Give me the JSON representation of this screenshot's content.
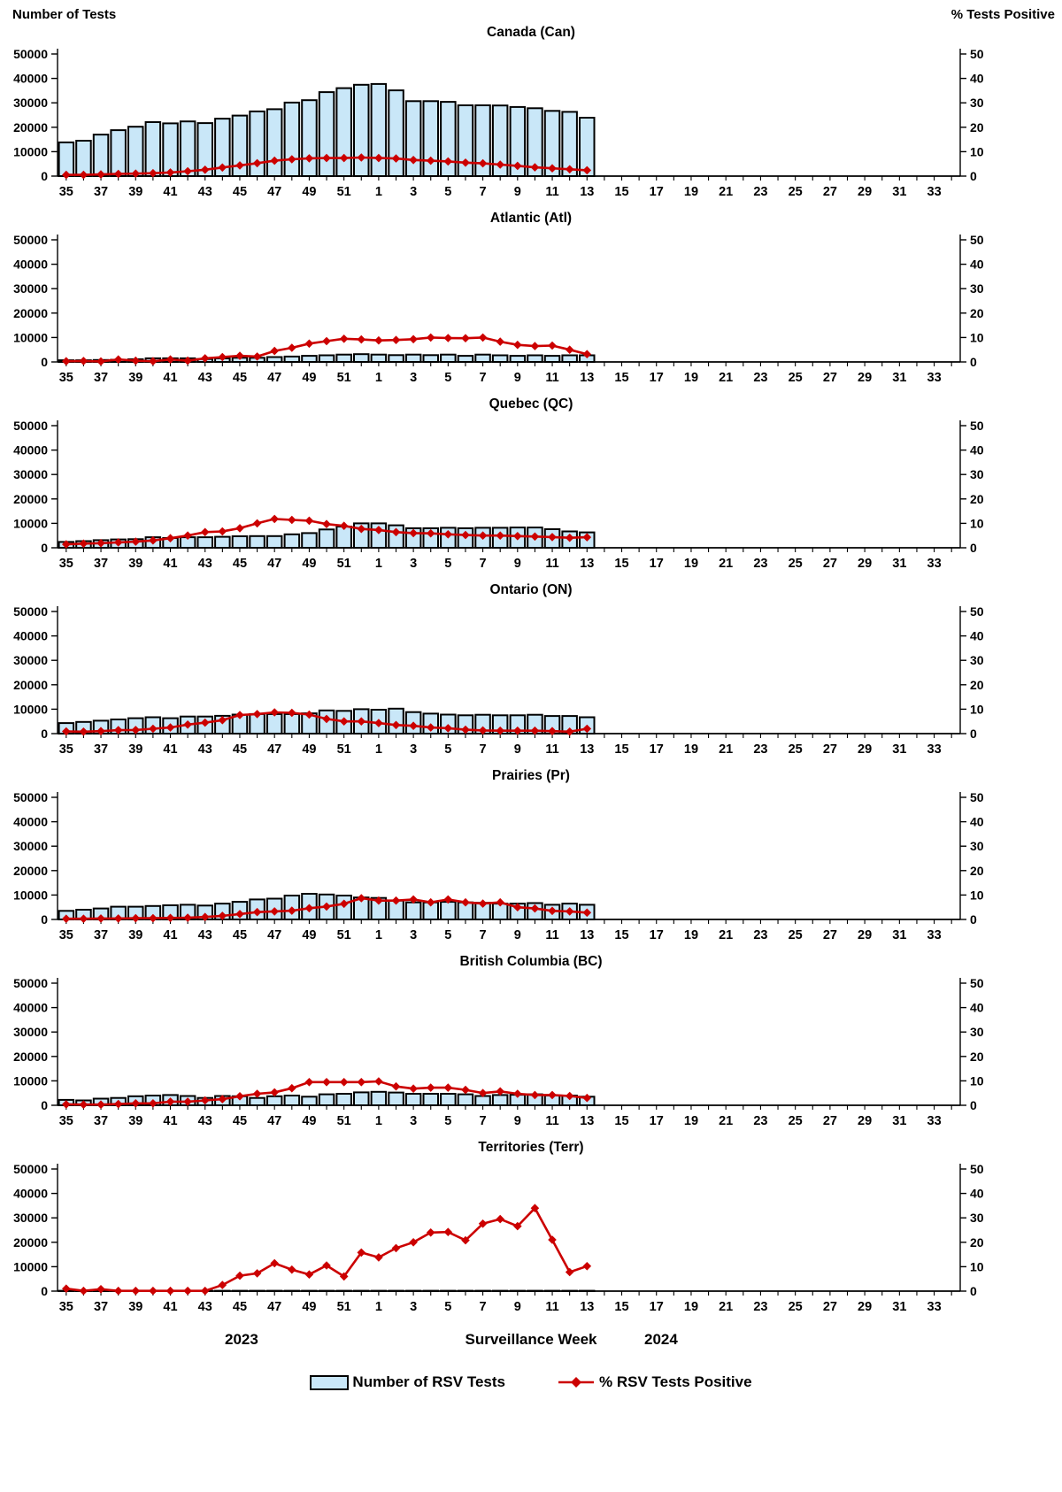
{
  "page": {
    "left_axis_title": "Number of Tests",
    "right_axis_title": "% Tests Positive",
    "x_axis": {
      "year_left": "2023",
      "title": "Surveillance Week",
      "year_right": "2024"
    },
    "legend": {
      "bars_label": "Number of RSV Tests",
      "line_label": "% RSV Tests Positive"
    },
    "colors": {
      "bar_fill": "#c9e7f8",
      "bar_stroke": "#000000",
      "line": "#cc0000",
      "axis": "#000000"
    }
  },
  "axes": {
    "left_ticks": [
      0,
      10000,
      20000,
      30000,
      40000,
      50000
    ],
    "right_ticks": [
      0,
      10,
      20,
      30,
      40,
      50
    ],
    "left_max": 50000,
    "right_max": 50,
    "x_weeks": [
      35,
      36,
      37,
      38,
      39,
      40,
      41,
      42,
      43,
      44,
      45,
      46,
      47,
      48,
      49,
      50,
      51,
      52,
      1,
      2,
      3,
      4,
      5,
      6,
      7,
      8,
      9,
      10,
      11,
      12,
      13,
      14,
      15,
      16,
      17,
      18,
      19,
      20,
      21,
      22,
      23,
      24,
      25,
      26,
      27,
      28,
      29,
      30,
      31,
      32,
      33,
      34
    ],
    "labeled_weeks": [
      35,
      37,
      39,
      41,
      43,
      45,
      47,
      49,
      51,
      1,
      3,
      5,
      7,
      9,
      11,
      13,
      15,
      17,
      19,
      21,
      23,
      25,
      27,
      29,
      31,
      33
    ]
  },
  "chart_data": [
    {
      "type": "bar",
      "title": "Canada (Can)",
      "data_weeks": [
        35,
        36,
        37,
        38,
        39,
        40,
        41,
        42,
        43,
        44,
        45,
        46,
        47,
        48,
        49,
        50,
        51,
        52,
        1,
        2,
        3,
        4,
        5,
        6,
        7,
        8,
        9,
        10,
        11,
        12,
        13
      ],
      "series": [
        {
          "name": "Number of RSV Tests",
          "axis": "left",
          "values": [
            13800,
            14500,
            17000,
            18800,
            20200,
            22100,
            21600,
            22400,
            21700,
            23500,
            24800,
            26500,
            27400,
            30100,
            31100,
            34400,
            36000,
            37400,
            37700,
            35100,
            30700,
            30700,
            30400,
            29000,
            29000,
            28900,
            28300,
            27800,
            26700,
            26300,
            23900
          ]
        },
        {
          "name": "% RSV Tests Positive",
          "axis": "right",
          "values": [
            0.5,
            0.5,
            0.7,
            0.9,
            1.0,
            1.2,
            1.5,
            2.0,
            2.6,
            3.5,
            4.4,
            5.3,
            6.3,
            6.9,
            7.3,
            7.4,
            7.4,
            7.6,
            7.4,
            7.2,
            6.6,
            6.3,
            6.0,
            5.5,
            5.2,
            4.7,
            4.2,
            3.6,
            3.2,
            2.8,
            2.4
          ]
        }
      ],
      "ylim_left": [
        0,
        50000
      ],
      "ylim_right": [
        0,
        50
      ]
    },
    {
      "type": "bar",
      "title": "Atlantic (Atl)",
      "data_weeks": [
        35,
        36,
        37,
        38,
        39,
        40,
        41,
        42,
        43,
        44,
        45,
        46,
        47,
        48,
        49,
        50,
        51,
        52,
        1,
        2,
        3,
        4,
        5,
        6,
        7,
        8,
        9,
        10,
        11,
        12,
        13
      ],
      "series": [
        {
          "name": "Number of RSV Tests",
          "axis": "left",
          "values": [
            700,
            700,
            800,
            900,
            1100,
            1500,
            1500,
            1500,
            1200,
            1500,
            1700,
            1700,
            2000,
            2200,
            2500,
            2700,
            3000,
            3200,
            3000,
            2800,
            3000,
            2800,
            3000,
            2500,
            3000,
            2700,
            2500,
            2700,
            2500,
            2700,
            2700
          ]
        },
        {
          "name": "% RSV Tests Positive",
          "axis": "right",
          "values": [
            0.3,
            0.4,
            0.2,
            1.0,
            0.5,
            0.3,
            1.0,
            0.5,
            1.5,
            2.0,
            2.5,
            2.2,
            4.5,
            5.8,
            7.5,
            8.5,
            9.5,
            9.2,
            8.8,
            9.0,
            9.3,
            10.0,
            9.8,
            9.7,
            10.0,
            8.3,
            7.0,
            6.5,
            6.7,
            5.0,
            3.2
          ]
        }
      ],
      "ylim_left": [
        0,
        50000
      ],
      "ylim_right": [
        0,
        50
      ]
    },
    {
      "type": "bar",
      "title": "Quebec (QC)",
      "data_weeks": [
        35,
        36,
        37,
        38,
        39,
        40,
        41,
        42,
        43,
        44,
        45,
        46,
        47,
        48,
        49,
        50,
        51,
        52,
        1,
        2,
        3,
        4,
        5,
        6,
        7,
        8,
        9,
        10,
        11,
        12,
        13
      ],
      "series": [
        {
          "name": "Number of RSV Tests",
          "axis": "left",
          "values": [
            2400,
            2700,
            3100,
            3400,
            3500,
            4300,
            4000,
            4300,
            4300,
            4500,
            4700,
            4800,
            4800,
            5500,
            6000,
            7500,
            8700,
            10000,
            10000,
            9200,
            8000,
            8000,
            8200,
            8000,
            8200,
            8200,
            8300,
            8300,
            7600,
            6700,
            6300
          ]
        },
        {
          "name": "% RSV Tests Positive",
          "axis": "right",
          "values": [
            1.4,
            1.7,
            1.9,
            2.2,
            2.5,
            3.0,
            3.9,
            5.0,
            6.4,
            6.7,
            8.0,
            10.0,
            11.8,
            11.4,
            11.1,
            9.7,
            9.0,
            7.7,
            7.3,
            6.4,
            6.0,
            5.9,
            5.5,
            5.2,
            5.0,
            5.0,
            4.8,
            4.6,
            4.4,
            4.1,
            4.3
          ]
        }
      ],
      "ylim_left": [
        0,
        50000
      ],
      "ylim_right": [
        0,
        50
      ]
    },
    {
      "type": "bar",
      "title": "Ontario (ON)",
      "data_weeks": [
        35,
        36,
        37,
        38,
        39,
        40,
        41,
        42,
        43,
        44,
        45,
        46,
        47,
        48,
        49,
        50,
        51,
        52,
        1,
        2,
        3,
        4,
        5,
        6,
        7,
        8,
        9,
        10,
        11,
        12,
        13
      ],
      "series": [
        {
          "name": "Number of RSV Tests",
          "axis": "left",
          "values": [
            4300,
            4800,
            5300,
            5800,
            6300,
            6700,
            6300,
            7000,
            7000,
            7300,
            7800,
            8000,
            8000,
            8000,
            8300,
            9500,
            9300,
            10000,
            9800,
            10200,
            8800,
            8200,
            7800,
            7500,
            7700,
            7500,
            7500,
            7700,
            7200,
            7200,
            6700
          ]
        },
        {
          "name": "% RSV Tests Positive",
          "axis": "right",
          "values": [
            0.9,
            0.8,
            1.0,
            1.4,
            1.5,
            2.0,
            2.5,
            3.7,
            4.5,
            5.5,
            7.6,
            8.0,
            8.7,
            8.5,
            7.8,
            6.0,
            5.0,
            5.0,
            4.3,
            3.5,
            3.2,
            2.5,
            2.2,
            1.6,
            1.3,
            1.2,
            1.2,
            1.2,
            1.0,
            0.8,
            2.0
          ]
        }
      ],
      "ylim_left": [
        0,
        50000
      ],
      "ylim_right": [
        0,
        50
      ]
    },
    {
      "type": "bar",
      "title": "Prairies (Pr)",
      "data_weeks": [
        35,
        36,
        37,
        38,
        39,
        40,
        41,
        42,
        43,
        44,
        45,
        46,
        47,
        48,
        49,
        50,
        51,
        52,
        1,
        2,
        3,
        4,
        5,
        6,
        7,
        8,
        9,
        10,
        11,
        12,
        13
      ],
      "series": [
        {
          "name": "Number of RSV Tests",
          "axis": "left",
          "values": [
            3500,
            4000,
            4500,
            5200,
            5200,
            5500,
            5800,
            6000,
            5700,
            6500,
            7200,
            8200,
            8500,
            9800,
            10500,
            10200,
            9800,
            9000,
            8800,
            7700,
            7000,
            7000,
            7200,
            7000,
            6800,
            6500,
            6500,
            6700,
            6000,
            6500,
            6000
          ]
        },
        {
          "name": "% RSV Tests Positive",
          "axis": "right",
          "values": [
            0.3,
            0.3,
            0.4,
            0.4,
            0.5,
            0.5,
            0.6,
            0.7,
            1.0,
            1.5,
            2.2,
            3.0,
            3.3,
            3.6,
            4.6,
            5.3,
            6.4,
            8.7,
            7.7,
            7.7,
            8.2,
            7.0,
            8.2,
            7.0,
            6.5,
            7.0,
            5.0,
            4.5,
            3.5,
            3.3,
            2.8
          ]
        }
      ],
      "ylim_left": [
        0,
        50000
      ],
      "ylim_right": [
        0,
        50
      ]
    },
    {
      "type": "bar",
      "title": "British Columbia (BC)",
      "data_weeks": [
        35,
        36,
        37,
        38,
        39,
        40,
        41,
        42,
        43,
        44,
        45,
        46,
        47,
        48,
        49,
        50,
        51,
        52,
        1,
        2,
        3,
        4,
        5,
        6,
        7,
        8,
        9,
        10,
        11,
        12,
        13
      ],
      "series": [
        {
          "name": "Number of RSV Tests",
          "axis": "left",
          "values": [
            2200,
            2000,
            2700,
            3000,
            3700,
            4000,
            4200,
            3800,
            3000,
            3800,
            3700,
            3000,
            3700,
            4000,
            3500,
            4500,
            4700,
            5300,
            5500,
            5200,
            4700,
            4700,
            4700,
            4500,
            3800,
            4200,
            4300,
            4500,
            4000,
            4000,
            3500
          ]
        },
        {
          "name": "% RSV Tests Positive",
          "axis": "right",
          "values": [
            0.4,
            0.3,
            0.3,
            0.5,
            0.8,
            0.8,
            1.5,
            1.5,
            2.0,
            2.5,
            3.7,
            4.7,
            5.3,
            7.0,
            9.5,
            9.5,
            9.5,
            9.5,
            9.8,
            7.7,
            6.8,
            7.2,
            7.2,
            6.3,
            5.0,
            5.7,
            4.7,
            4.2,
            4.2,
            3.8,
            3.0
          ]
        }
      ],
      "ylim_left": [
        0,
        50000
      ],
      "ylim_right": [
        0,
        50
      ]
    },
    {
      "type": "bar",
      "title": "Territories (Terr)",
      "data_weeks": [
        35,
        36,
        37,
        38,
        39,
        40,
        41,
        42,
        43,
        44,
        45,
        46,
        47,
        48,
        49,
        50,
        51,
        52,
        1,
        2,
        3,
        4,
        5,
        6,
        7,
        8,
        9,
        10,
        11,
        12,
        13
      ],
      "series": [
        {
          "name": "Number of RSV Tests",
          "axis": "left",
          "values": [
            150,
            150,
            150,
            150,
            150,
            150,
            150,
            150,
            150,
            150,
            150,
            150,
            150,
            150,
            150,
            150,
            150,
            150,
            150,
            150,
            150,
            150,
            150,
            150,
            150,
            150,
            150,
            150,
            150,
            150,
            150
          ]
        },
        {
          "name": "% RSV Tests Positive",
          "axis": "right",
          "values": [
            1.0,
            0.1,
            0.8,
            0.1,
            0.1,
            0.1,
            0.1,
            0.1,
            0.1,
            2.5,
            6.3,
            7.3,
            11.4,
            8.8,
            6.8,
            10.5,
            6.0,
            15.8,
            13.8,
            17.6,
            20.0,
            24.0,
            24.2,
            20.8,
            27.6,
            29.5,
            26.6,
            34.0,
            21.0,
            7.8,
            10.2
          ]
        }
      ],
      "ylim_left": [
        0,
        50000
      ],
      "ylim_right": [
        0,
        50
      ]
    }
  ]
}
